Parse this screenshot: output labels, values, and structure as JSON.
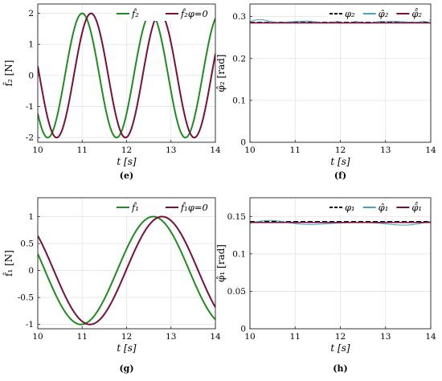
{
  "chart_data": [
    {
      "id": "e",
      "type": "line",
      "caption": "(e)",
      "xlabel": "t [s]",
      "ylabel": "f̂₂ [N]",
      "xlim": [
        10,
        14
      ],
      "ylim": [
        -2.15,
        2.3
      ],
      "xticks": [
        10,
        11,
        12,
        13,
        14
      ],
      "yticks": [
        -2,
        -1,
        0,
        1,
        2
      ],
      "xtick_labels": [
        "10",
        "11",
        "12",
        "13",
        "14"
      ],
      "ytick_labels": [
        "-2",
        "-1",
        "0",
        "1",
        "2"
      ],
      "grid": true,
      "legend": "top-right",
      "series": [
        {
          "name": "f̂₂",
          "kind": "sine",
          "amplitude": 2,
          "period": 1.55,
          "peak_t": 11.0,
          "color": "#1f8c1f",
          "dash": ""
        },
        {
          "name": "f̂₂φ=0",
          "kind": "sine",
          "amplitude": 2,
          "period": 1.55,
          "peak_t": 11.2,
          "color": "#7a0f3a",
          "dash": ""
        }
      ]
    },
    {
      "id": "f",
      "type": "line",
      "caption": "(f)",
      "xlabel": "t [s]",
      "ylabel": "φ̂₂ [rad]",
      "xlim": [
        10,
        14
      ],
      "ylim": [
        0,
        0.33
      ],
      "xticks": [
        10,
        11,
        12,
        13,
        14
      ],
      "yticks": [
        0,
        0.1,
        0.2,
        0.3
      ],
      "xtick_labels": [
        "10",
        "11",
        "12",
        "13",
        "14"
      ],
      "ytick_labels": [
        "0",
        "0.1",
        "0.2",
        "0.3"
      ],
      "grid": true,
      "legend": "top-right",
      "series": [
        {
          "name": "φ₂",
          "kind": "const",
          "value": 0.286,
          "color": "#000000",
          "dash": "6 3"
        },
        {
          "name": "φ̂₂",
          "kind": "ripple",
          "value": 0.288,
          "ripple": 0.005,
          "period": 0.95,
          "color": "#4aa3c4",
          "dash": ""
        },
        {
          "name": "φ̄̂₂",
          "kind": "const",
          "value": 0.285,
          "color": "#7a0f3a",
          "dash": ""
        }
      ]
    },
    {
      "id": "g",
      "type": "line",
      "caption": "(g)",
      "xlabel": "t [s]",
      "ylabel": "f̂₁ [N]",
      "xlim": [
        10,
        14
      ],
      "ylim": [
        -1.08,
        1.35
      ],
      "xticks": [
        10,
        11,
        12,
        13,
        14
      ],
      "yticks": [
        -1,
        -0.5,
        0,
        0.5,
        1
      ],
      "xtick_labels": [
        "10",
        "11",
        "12",
        "13",
        "14"
      ],
      "ytick_labels": [
        "-1",
        "-0.5",
        "0",
        "0.5",
        "1"
      ],
      "grid": true,
      "legend": "top-right",
      "series": [
        {
          "name": "f̂₁",
          "kind": "sine",
          "amplitude": 1,
          "period": 3.25,
          "peak_t": 12.6,
          "color": "#1f8c1f",
          "dash": ""
        },
        {
          "name": "f̂₁φ=0",
          "kind": "sine",
          "amplitude": 1,
          "period": 3.25,
          "peak_t": 12.8,
          "color": "#7a0f3a",
          "dash": ""
        }
      ]
    },
    {
      "id": "h",
      "type": "line",
      "caption": "(h)",
      "xlabel": "t [s]",
      "ylabel": "φ̂₁ [rad]",
      "xlim": [
        10,
        14
      ],
      "ylim": [
        0,
        0.175
      ],
      "xticks": [
        10,
        11,
        12,
        13,
        14
      ],
      "yticks": [
        0,
        0.05,
        0.1,
        0.15
      ],
      "xtick_labels": [
        "10",
        "11",
        "12",
        "13",
        "14"
      ],
      "ytick_labels": [
        "0",
        "0.05",
        "0.1",
        "0.15"
      ],
      "grid": true,
      "legend": "top-right",
      "series": [
        {
          "name": "φ₁",
          "kind": "const",
          "value": 0.143,
          "color": "#000000",
          "dash": "6 3"
        },
        {
          "name": "φ̂₁",
          "kind": "ripple",
          "value": 0.141,
          "ripple": 0.004,
          "period": 1.9,
          "color": "#4aa3c4",
          "dash": ""
        },
        {
          "name": "φ̄̂₁",
          "kind": "const",
          "value": 0.142,
          "color": "#7a0f3a",
          "dash": ""
        }
      ]
    }
  ]
}
